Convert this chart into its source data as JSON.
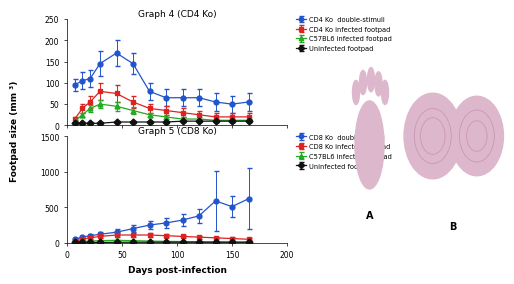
{
  "graph4_title": "Graph 4 (CD4 Ko)",
  "graph5_title": "Graph 5 (CD8 Ko)",
  "xlabel": "Days post-infection",
  "ylabel": "Footpad size (mm ³)",
  "graph4_ylim": [
    0,
    250
  ],
  "graph4_yticks": [
    0,
    50,
    100,
    150,
    200,
    250
  ],
  "graph5_ylim": [
    0,
    1500
  ],
  "graph5_yticks": [
    0,
    500,
    1000,
    1500
  ],
  "xlim": [
    0,
    200
  ],
  "xticks": [
    0,
    50,
    100,
    150,
    200
  ],
  "days_g4": [
    7,
    14,
    21,
    30,
    45,
    60,
    75,
    90,
    105,
    120,
    135,
    150,
    165
  ],
  "cd4_double": [
    95,
    105,
    110,
    145,
    170,
    145,
    80,
    65,
    65,
    65,
    55,
    50,
    55
  ],
  "cd4_double_err": [
    15,
    20,
    20,
    30,
    30,
    25,
    20,
    20,
    20,
    20,
    20,
    20,
    20
  ],
  "cd4_infected": [
    15,
    40,
    55,
    80,
    75,
    55,
    40,
    35,
    30,
    25,
    20,
    20,
    20
  ],
  "cd4_infected_err": [
    5,
    10,
    15,
    20,
    20,
    15,
    10,
    10,
    10,
    10,
    8,
    8,
    8
  ],
  "c57bl6_g4": [
    10,
    25,
    40,
    50,
    45,
    35,
    25,
    20,
    15,
    15,
    12,
    12,
    12
  ],
  "c57bl6_g4_err": [
    3,
    5,
    8,
    10,
    10,
    8,
    5,
    5,
    5,
    5,
    4,
    4,
    4
  ],
  "uninf_g4": [
    5,
    5,
    5,
    5,
    8,
    8,
    8,
    8,
    10,
    10,
    10,
    10,
    10
  ],
  "uninf_g4_err": [
    2,
    2,
    2,
    2,
    3,
    3,
    3,
    3,
    3,
    3,
    3,
    3,
    3
  ],
  "days_g5": [
    7,
    14,
    21,
    30,
    45,
    60,
    75,
    90,
    105,
    120,
    135,
    150,
    165
  ],
  "cd8_double": [
    50,
    80,
    100,
    120,
    150,
    200,
    250,
    280,
    320,
    380,
    590,
    510,
    620
  ],
  "cd8_double_err": [
    15,
    20,
    25,
    30,
    40,
    50,
    60,
    70,
    80,
    100,
    420,
    150,
    430
  ],
  "cd8_infected": [
    20,
    50,
    70,
    90,
    110,
    110,
    110,
    100,
    90,
    80,
    70,
    60,
    50
  ],
  "cd8_infected_err": [
    5,
    15,
    20,
    25,
    30,
    30,
    28,
    25,
    22,
    20,
    18,
    15,
    12
  ],
  "c57bl6_g5": [
    8,
    20,
    25,
    30,
    35,
    30,
    25,
    20,
    18,
    15,
    12,
    10,
    10
  ],
  "c57bl6_g5_err": [
    3,
    5,
    6,
    8,
    8,
    7,
    6,
    5,
    5,
    4,
    4,
    3,
    3
  ],
  "uninf_g5": [
    5,
    5,
    5,
    5,
    8,
    8,
    8,
    8,
    8,
    8,
    8,
    8,
    8
  ],
  "uninf_g5_err": [
    2,
    2,
    2,
    2,
    3,
    3,
    3,
    3,
    3,
    3,
    3,
    3,
    3
  ],
  "color_blue": "#2255cc",
  "color_red": "#dd2222",
  "color_green": "#22aa22",
  "color_black": "#111111",
  "legend_g4": [
    "CD4 Ko  double-stimuli",
    "CD4 Ko infected footpad",
    "C57BL6 infected footpad",
    "Uninfected footpad"
  ],
  "legend_g5": [
    "CD8 Ko  double-stimuli",
    "CD8 Ko infected footpad",
    "C57BL6 infected footpad",
    "Uninfected footpad"
  ],
  "label_A": "A",
  "label_B": "B"
}
